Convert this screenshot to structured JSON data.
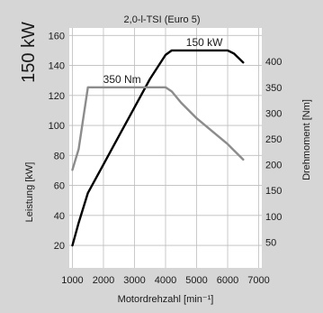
{
  "chart_data": {
    "type": "line",
    "title": "2,0-l-TSI (Euro 5)",
    "side_label": "150 kW",
    "xlabel": "Motordrehzahl [min⁻¹]",
    "ylabel_left": "Leistung [kW]",
    "ylabel_right": "Drehmoment [Nm]",
    "xlim": [
      900,
      7100
    ],
    "ylim_left": [
      5,
      165
    ],
    "ylim_right": [
      0,
      465
    ],
    "x_ticks": [
      1000,
      2000,
      3000,
      4000,
      5000,
      6000,
      7000
    ],
    "x_tick_labels": [
      "1000",
      "2000",
      "3000",
      "4000",
      "5000",
      "6000",
      "7000"
    ],
    "y_left_ticks": [
      20,
      40,
      60,
      80,
      100,
      120,
      140,
      160
    ],
    "y_left_tick_labels": [
      "20",
      "40",
      "60",
      "80",
      "100",
      "120",
      "140",
      "160"
    ],
    "y_right_ticks": [
      50,
      100,
      150,
      200,
      250,
      300,
      350,
      400
    ],
    "y_right_tick_labels": [
      "50",
      "100",
      "150",
      "200",
      "250",
      "300",
      "350",
      "400"
    ],
    "grid": true,
    "legend": "none",
    "series": [
      {
        "label": "150 kW",
        "axis": "left",
        "color": "#000000",
        "x": [
          1000,
          1200,
          1500,
          2000,
          2500,
          3000,
          3500,
          4000,
          4200,
          4500,
          5000,
          5500,
          6000,
          6200,
          6500
        ],
        "y": [
          20,
          35,
          55,
          74,
          93,
          112,
          131,
          147,
          150,
          150,
          150,
          150,
          150,
          148,
          142
        ]
      },
      {
        "label": "350 Nm",
        "axis": "right",
        "color": "#8c8c8c",
        "x": [
          1000,
          1200,
          1500,
          2000,
          3000,
          4000,
          4200,
          4500,
          5000,
          5500,
          6000,
          6200,
          6500
        ],
        "y": [
          190,
          230,
          350,
          350,
          350,
          350,
          342,
          320,
          290,
          265,
          240,
          228,
          210
        ]
      }
    ]
  }
}
